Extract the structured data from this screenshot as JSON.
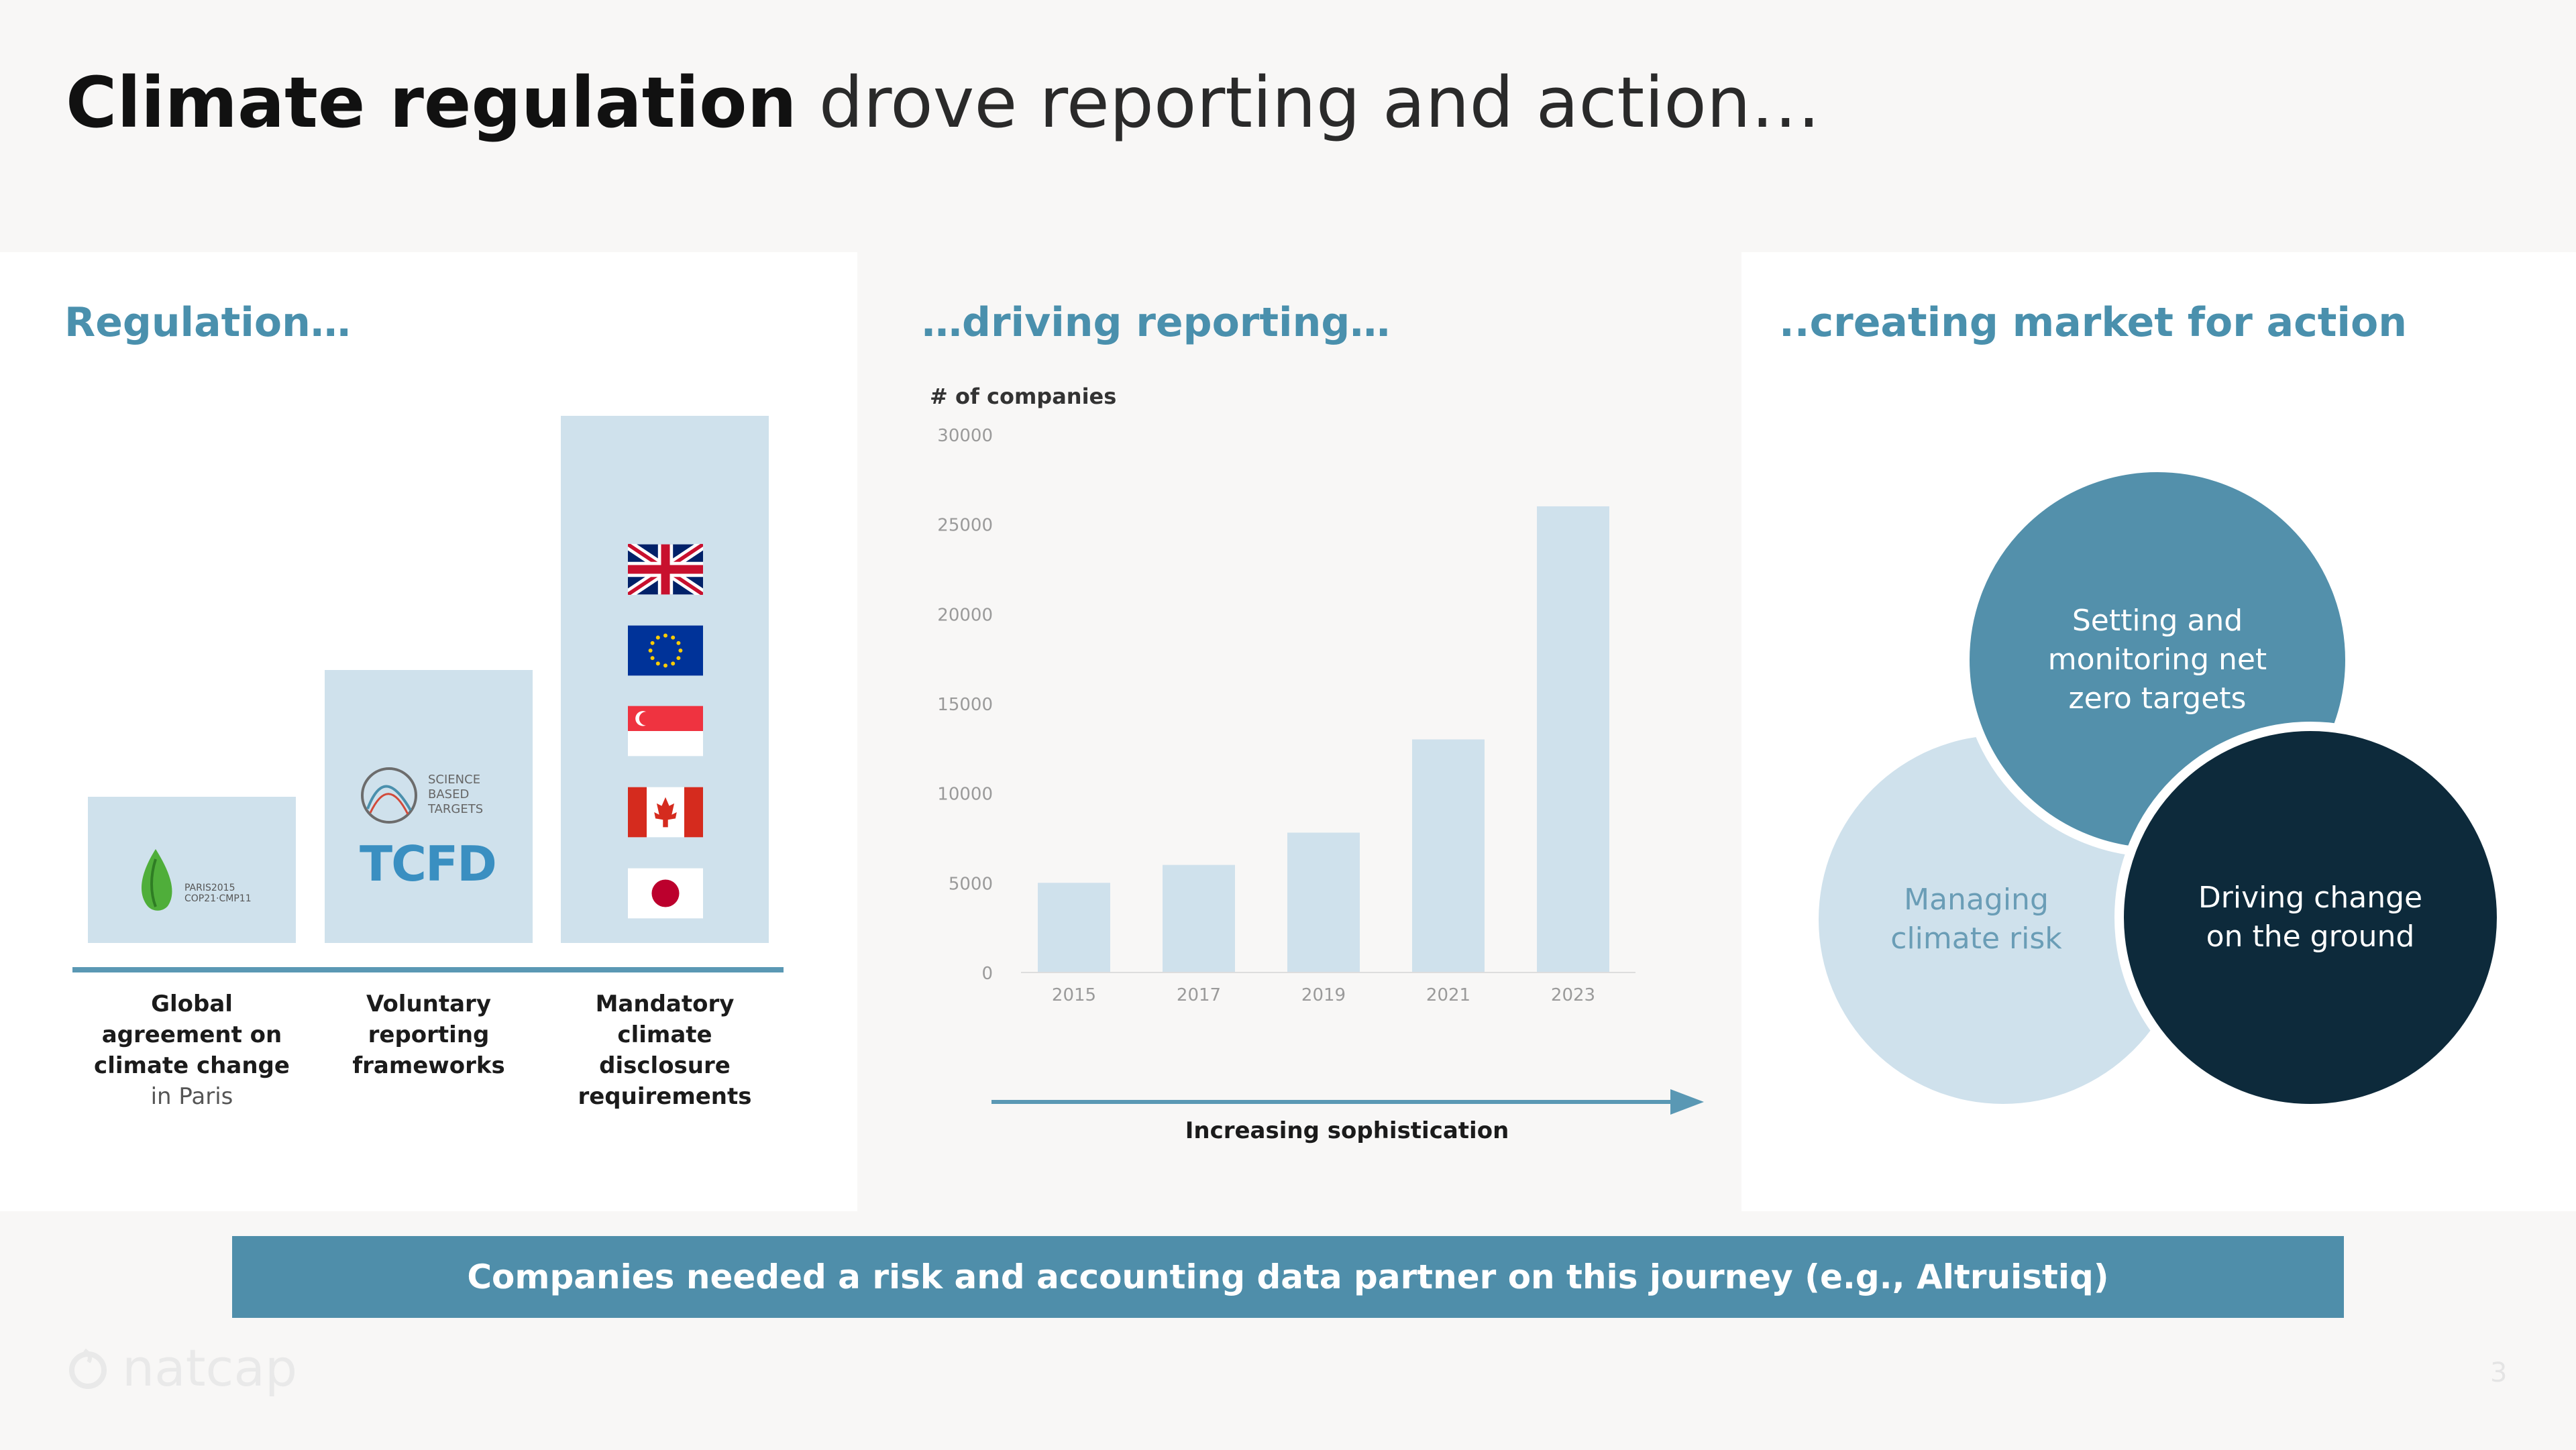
{
  "title": {
    "bold": "Climate regulation",
    "rest": "drove reporting and action…"
  },
  "regulation": {
    "heading": "Regulation…",
    "steps": [
      {
        "label_main": "Global agreement on climate change",
        "label_sub": "in Paris",
        "logo": "paris-2015-cop21-logo",
        "logo_text": "PARIS2015 COP21·CMP11"
      },
      {
        "label_main": "Voluntary reporting frameworks",
        "label_sub": "",
        "logo": "sbti-tcfd-logos",
        "sbti_text": "SCIENCE BASED TARGETS",
        "tcfd_text": "TCFD"
      },
      {
        "label_main": "Mandatory climate disclosure requirements",
        "label_sub": "",
        "flags": [
          "uk-flag",
          "eu-flag",
          "singapore-flag",
          "canada-flag",
          "japan-flag"
        ]
      }
    ]
  },
  "reporting": {
    "heading": "…driving reporting…",
    "arrow_label": "Increasing sophistication"
  },
  "chart_data": {
    "type": "bar",
    "categories": [
      "2015",
      "2017",
      "2019",
      "2021",
      "2023"
    ],
    "values": [
      5000,
      6000,
      7800,
      13000,
      26000
    ],
    "ylabel": "# of companies",
    "ylim": [
      0,
      30000
    ],
    "yticks": [
      "0",
      "5000",
      "10000",
      "15000",
      "20000",
      "25000",
      "30000"
    ],
    "bar_color": "#cfe1ec",
    "grid": false
  },
  "action": {
    "heading": "..creating market for action",
    "circles": {
      "risk": "Managing climate risk",
      "targets": "Setting and monitoring net zero targets",
      "ground": "Driving change on the ground"
    }
  },
  "banner": "Companies needed a risk and accounting data partner on this journey (e.g., Altruistiq)",
  "footer": {
    "logo": "natcap",
    "page": "3"
  },
  "colors": {
    "accent": "#4a90ad",
    "light_blue": "#cfe1ec",
    "dark_navy": "#0d2a3b",
    "banner": "#4f8eaa"
  }
}
